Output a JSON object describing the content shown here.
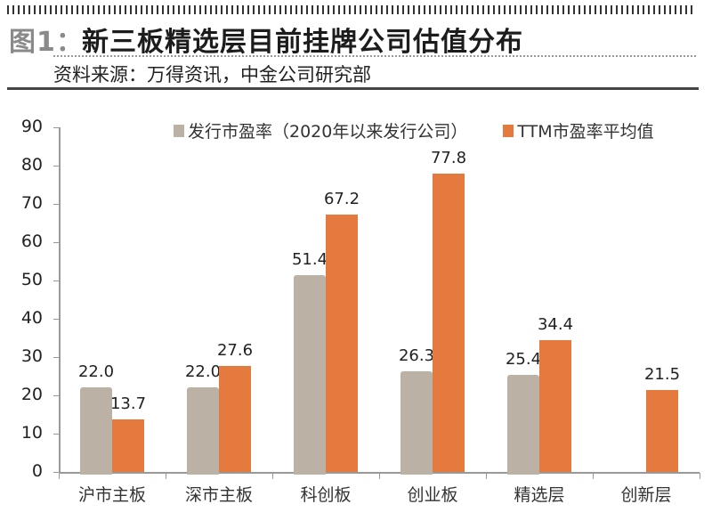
{
  "header": {
    "figure_label": "图1：",
    "title": "新三板精选层目前挂牌公司估值分布",
    "source": "资料来源：万得资讯，中金公司研究部"
  },
  "colors": {
    "series0": "#bcb1a5",
    "series1": "#e57a3e"
  },
  "chart_data": {
    "type": "bar",
    "title": "新三板精选层目前挂牌公司估值分布",
    "xlabel": "",
    "ylabel": "",
    "ylim": [
      0,
      90
    ],
    "yticks": [
      0,
      10,
      20,
      30,
      40,
      50,
      60,
      70,
      80,
      90
    ],
    "grid": false,
    "legend_position": "top",
    "categories": [
      "沪市主板",
      "深市主板",
      "科创板",
      "创业板",
      "精选层",
      "创新层"
    ],
    "series": [
      {
        "name": "发行市盈率（2020年以来发行公司）",
        "values": [
          22.0,
          22.0,
          51.4,
          26.3,
          25.4,
          null
        ],
        "labels": [
          "22.0",
          "22.0",
          "51.4",
          "26.3",
          "25.4",
          ""
        ]
      },
      {
        "name": "TTM市盈率平均值",
        "values": [
          13.7,
          27.6,
          67.2,
          77.8,
          34.4,
          21.5
        ],
        "labels": [
          "13.7",
          "27.6",
          "67.2",
          "77.8",
          "34.4",
          "21.5"
        ]
      }
    ]
  }
}
